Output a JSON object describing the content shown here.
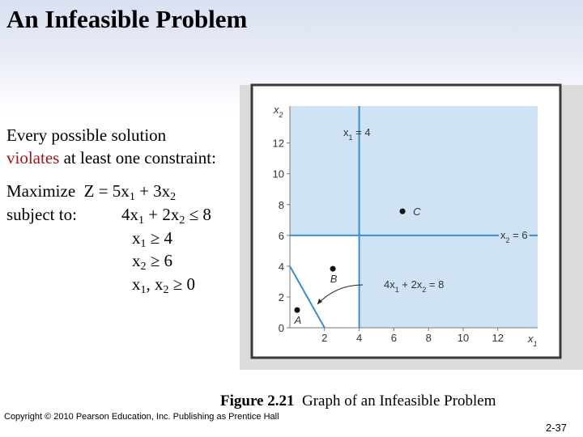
{
  "header": {
    "title": "An Infeasible Problem"
  },
  "body": {
    "intro": "Every possible solution",
    "emphasis": "violates",
    "intro_rest": " at least one constraint:",
    "objective": [
      "Maximize  Z = 5x",
      "1",
      " + 3x",
      "2"
    ],
    "subject_to": "subject to:",
    "constraints": [
      [
        "4x",
        "1",
        " + 2x",
        "2",
        " ≤ 8"
      ],
      [
        "x",
        "1",
        " ≥ 4"
      ],
      [
        "x",
        "2",
        " ≥ 6"
      ],
      [
        "x",
        "1",
        ", x",
        "2",
        " ≥ 0"
      ]
    ]
  },
  "figure": {
    "x_label": [
      "x",
      "1"
    ],
    "y_label": [
      "x",
      "2"
    ],
    "xlim": [
      0,
      14.3
    ],
    "ylim": [
      0,
      14.4
    ],
    "xticks": [
      2,
      4,
      6,
      8,
      10,
      12
    ],
    "yticks": [
      0,
      2,
      4,
      6,
      8,
      10,
      12
    ],
    "lines": [
      {
        "label": [
          "x",
          "1",
          " = 4"
        ],
        "x": [
          4,
          4
        ],
        "y": [
          0,
          14.4
        ]
      },
      {
        "label": [
          "x",
          "2",
          " = 6"
        ],
        "x": [
          0,
          14.3
        ],
        "y": [
          6,
          6
        ]
      },
      {
        "label": [
          "4x",
          "1",
          " + 2x",
          "2",
          " = 8"
        ],
        "x": [
          0,
          2
        ],
        "y": [
          4,
          0
        ]
      }
    ],
    "points": [
      {
        "label": "C",
        "x": 6.5,
        "y": 7.56
      },
      {
        "label": "B",
        "x": 2.48,
        "y": 3.83
      },
      {
        "label": "A",
        "x": 0.42,
        "y": 1.15
      }
    ]
  },
  "caption": {
    "number": "Figure 2.21",
    "text": "Graph of an Infeasible Problem"
  },
  "footer": {
    "copyright": "Copyright © 2010 Pearson Education, Inc. Publishing as Prentice Hall",
    "page": "2-37"
  }
}
